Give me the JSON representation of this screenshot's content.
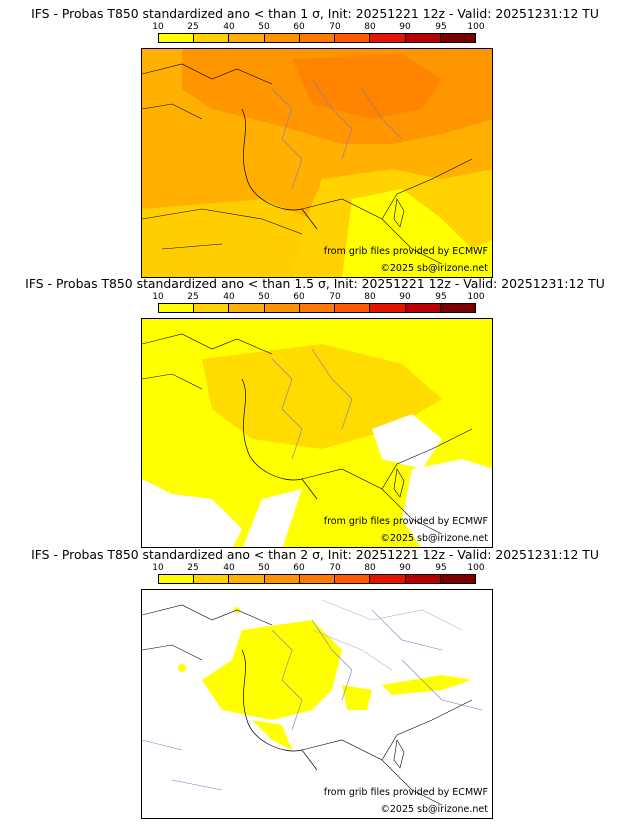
{
  "legend": {
    "ticks": [
      "10",
      "25",
      "40",
      "50",
      "60",
      "70",
      "80",
      "90",
      "95",
      "100"
    ],
    "colors": [
      "#ffff00",
      "#ffd200",
      "#ffb000",
      "#ff9400",
      "#ff7a00",
      "#ff5a00",
      "#e51400",
      "#b90000",
      "#7a0000"
    ]
  },
  "panels": [
    {
      "title": "IFS - Probas T850  standardized ano < than 1 σ, Init: 20251221 12z - Valid: 20251231:12 TU",
      "credit_source": "from grib files provided by ECMWF",
      "credit_copyright": "©2025 sb@irizone.net"
    },
    {
      "title": "IFS - Probas T850  standardized ano < than 1.5 σ, Init: 20251221 12z - Valid: 20251231:12 TU",
      "credit_source": "from grib files provided by ECMWF",
      "credit_copyright": "©2025 sb@irizone.net"
    },
    {
      "title": "IFS - Probas T850  standardized ano < than 2 σ, Init: 20251221 12z - Valid: 20251231:12 TU",
      "credit_source": "from grib files provided by ECMWF",
      "credit_copyright": "©2025 sb@irizone.net"
    }
  ]
}
